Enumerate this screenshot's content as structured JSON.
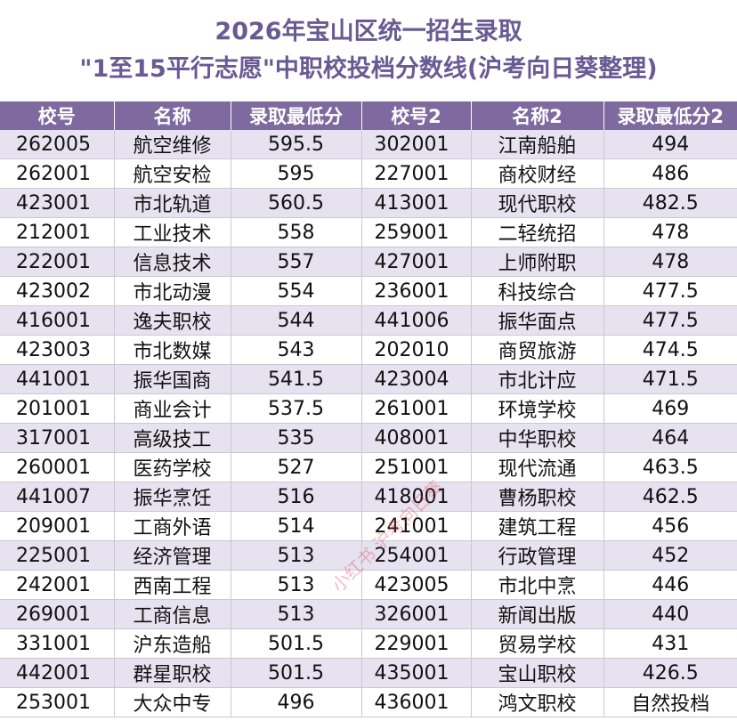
{
  "title": {
    "line1": "2026年宝山区统一招生录取",
    "line2": "\"1至15平行志愿\"中职校投档分数线(沪考向日葵整理)"
  },
  "columns": [
    "校号",
    "名称",
    "录取最低分",
    "校号2",
    "名称2",
    "录取最低分2"
  ],
  "rows": [
    [
      "262005",
      "航空维修",
      "595.5",
      "302001",
      "江南船舶",
      "494"
    ],
    [
      "262001",
      "航空安检",
      "595",
      "227001",
      "商校财经",
      "486"
    ],
    [
      "423001",
      "市北轨道",
      "560.5",
      "413001",
      "现代职校",
      "482.5"
    ],
    [
      "212001",
      "工业技术",
      "558",
      "259001",
      "二轻统招",
      "478"
    ],
    [
      "222001",
      "信息技术",
      "557",
      "427001",
      "上师附职",
      "478"
    ],
    [
      "423002",
      "市北动漫",
      "554",
      "236001",
      "科技综合",
      "477.5"
    ],
    [
      "416001",
      "逸夫职校",
      "544",
      "441006",
      "振华面点",
      "477.5"
    ],
    [
      "423003",
      "市北数媒",
      "543",
      "202010",
      "商贸旅游",
      "474.5"
    ],
    [
      "441001",
      "振华国商",
      "541.5",
      "423004",
      "市北计应",
      "471.5"
    ],
    [
      "201001",
      "商业会计",
      "537.5",
      "261001",
      "环境学校",
      "469"
    ],
    [
      "317001",
      "高级技工",
      "535",
      "408001",
      "中华职校",
      "464"
    ],
    [
      "260001",
      "医药学校",
      "527",
      "251001",
      "现代流通",
      "463.5"
    ],
    [
      "441007",
      "振华烹饪",
      "516",
      "418001",
      "曹杨职校",
      "462.5"
    ],
    [
      "209001",
      "工商外语",
      "514",
      "241001",
      "建筑工程",
      "456"
    ],
    [
      "225001",
      "经济管理",
      "513",
      "254001",
      "行政管理",
      "452"
    ],
    [
      "242001",
      "西南工程",
      "513",
      "423005",
      "市北中烹",
      "446"
    ],
    [
      "269001",
      "工商信息",
      "513",
      "326001",
      "新闻出版",
      "440"
    ],
    [
      "331001",
      "沪东造船",
      "501.5",
      "229001",
      "贸易学校",
      "431"
    ],
    [
      "442001",
      "群星职校",
      "501.5",
      "435001",
      "宝山职校",
      "426.5"
    ],
    [
      "253001",
      "大众中专",
      "496",
      "436001",
      "鸿文职校",
      "自然投档"
    ]
  ],
  "watermark": "小红书 沪考向日葵",
  "colors": {
    "title": "#6a5a93",
    "header_bg": "#7f6a9f",
    "row_alt_bg": "#e7e2f0"
  }
}
